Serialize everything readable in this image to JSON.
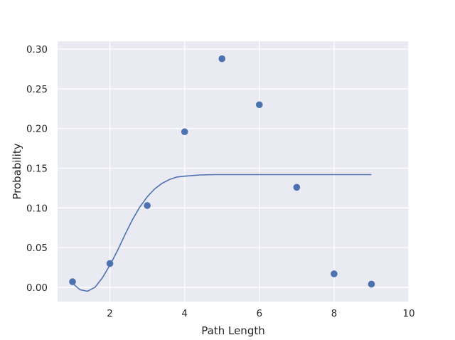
{
  "chart_data": {
    "type": "scatter",
    "title": "",
    "xlabel": "Path Length",
    "ylabel": "Probability",
    "xlim": [
      0.6,
      10
    ],
    "ylim": [
      -0.018,
      0.31
    ],
    "x_ticks": [
      2,
      4,
      6,
      8,
      10
    ],
    "y_ticks": [
      0.0,
      0.05,
      0.1,
      0.15,
      0.2,
      0.25,
      0.3
    ],
    "x_tick_labels": [
      "2",
      "4",
      "6",
      "8",
      "10"
    ],
    "y_tick_labels": [
      "0.00",
      "0.05",
      "0.10",
      "0.15",
      "0.20",
      "0.25",
      "0.30"
    ],
    "grid": true,
    "series": [
      {
        "kind": "scatter",
        "x": [
          1,
          2,
          3,
          4,
          5,
          6,
          7,
          8,
          9
        ],
        "y": [
          0.007,
          0.03,
          0.103,
          0.196,
          0.288,
          0.23,
          0.126,
          0.017,
          0.004
        ]
      },
      {
        "kind": "line",
        "x": [
          1.0,
          1.2,
          1.4,
          1.6,
          1.8,
          2.0,
          2.2,
          2.4,
          2.6,
          2.8,
          3.0,
          3.2,
          3.4,
          3.6,
          3.8,
          4.0,
          4.4,
          4.8,
          5.5,
          6.5,
          7.5,
          9.0
        ],
        "y": [
          0.005,
          -0.003,
          -0.005,
          0.0,
          0.012,
          0.028,
          0.046,
          0.066,
          0.085,
          0.101,
          0.114,
          0.124,
          0.131,
          0.136,
          0.139,
          0.14,
          0.1415,
          0.142,
          0.142,
          0.142,
          0.142,
          0.142
        ]
      }
    ],
    "colors": {
      "background": "#eaeaf2",
      "grid": "#ffffff",
      "series": "#4c72b0"
    }
  }
}
